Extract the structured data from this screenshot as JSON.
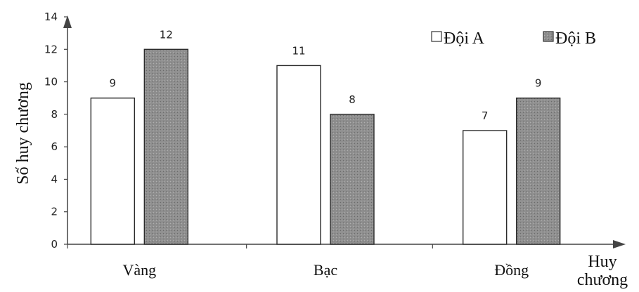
{
  "chart_data": {
    "type": "bar",
    "categories": [
      "Vàng",
      "Bạc",
      "Đồng"
    ],
    "series": [
      {
        "name": "Đội A",
        "values": [
          9,
          11,
          7
        ],
        "color": "#ffffff"
      },
      {
        "name": "Đội B",
        "values": [
          12,
          8,
          9
        ],
        "color": "#8c8c8c"
      }
    ],
    "ylabel": "Số huy chương",
    "xlabel_lines": [
      "Huy",
      "chương"
    ],
    "ylim": [
      0,
      14
    ],
    "yticks": [
      0,
      2,
      4,
      6,
      8,
      10,
      12,
      14
    ],
    "grid": false,
    "legend_position": "top-right"
  }
}
